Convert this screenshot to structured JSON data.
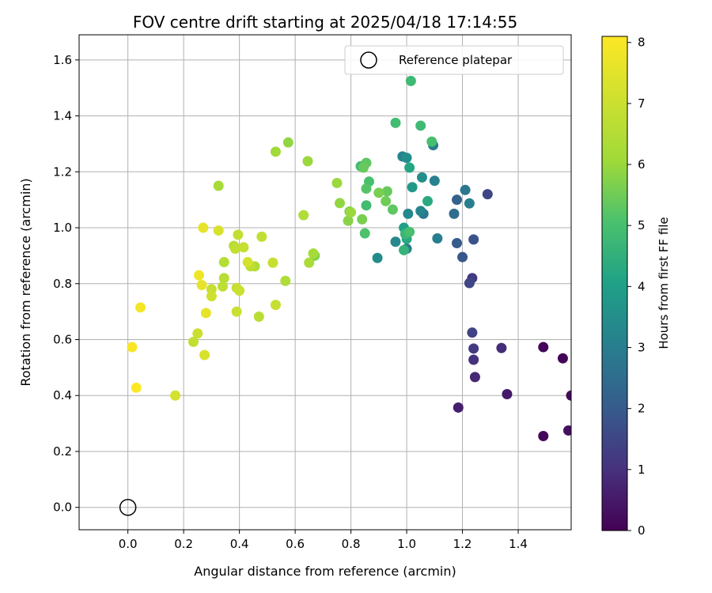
{
  "chart_data": {
    "type": "scatter",
    "title": "FOV centre drift starting at 2025/04/18 17:14:55",
    "xlabel": "Angular distance from reference (arcmin)",
    "ylabel": "Rotation from reference (arcmin)",
    "xlim": [
      -0.175,
      1.59
    ],
    "ylim": [
      -0.08,
      1.69
    ],
    "xticks": [
      "0.0",
      "0.2",
      "0.4",
      "0.6",
      "0.8",
      "1.0",
      "1.2",
      "1.4"
    ],
    "yticks": [
      "0.0",
      "0.2",
      "0.4",
      "0.6",
      "0.8",
      "1.0",
      "1.2",
      "1.4",
      "1.6"
    ],
    "grid": true,
    "legend": {
      "placement": "top-right",
      "label": "Reference platepar"
    },
    "reference_point": {
      "x": 0.0,
      "y": 0.0
    },
    "colorbar": {
      "label": "Hours from first FF file",
      "colormap": "viridis",
      "range": [
        0,
        8.1
      ],
      "ticks": [
        "0",
        "1",
        "2",
        "3",
        "4",
        "5",
        "6",
        "7",
        "8"
      ]
    },
    "points": [
      {
        "x": 1.49,
        "y": 0.573,
        "h": 0.1
      },
      {
        "x": 1.56,
        "y": 0.533,
        "h": 0.1
      },
      {
        "x": 1.49,
        "y": 0.255,
        "h": 0.15
      },
      {
        "x": 1.59,
        "y": 0.4,
        "h": 0.2
      },
      {
        "x": 1.58,
        "y": 0.275,
        "h": 0.3
      },
      {
        "x": 1.36,
        "y": 0.405,
        "h": 0.5
      },
      {
        "x": 1.185,
        "y": 0.357,
        "h": 0.6
      },
      {
        "x": 1.245,
        "y": 0.466,
        "h": 0.8
      },
      {
        "x": 1.34,
        "y": 0.57,
        "h": 0.9
      },
      {
        "x": 1.24,
        "y": 0.528,
        "h": 1.0
      },
      {
        "x": 1.24,
        "y": 0.568,
        "h": 1.2
      },
      {
        "x": 1.235,
        "y": 0.625,
        "h": 1.4
      },
      {
        "x": 1.235,
        "y": 0.82,
        "h": 1.2
      },
      {
        "x": 1.225,
        "y": 0.802,
        "h": 1.5
      },
      {
        "x": 1.29,
        "y": 1.12,
        "h": 1.5
      },
      {
        "x": 1.24,
        "y": 0.958,
        "h": 1.8
      },
      {
        "x": 1.2,
        "y": 0.895,
        "h": 1.9
      },
      {
        "x": 1.18,
        "y": 0.945,
        "h": 2.0
      },
      {
        "x": 1.18,
        "y": 1.1,
        "h": 2.2
      },
      {
        "x": 1.17,
        "y": 1.05,
        "h": 2.5
      },
      {
        "x": 1.21,
        "y": 1.135,
        "h": 2.8
      },
      {
        "x": 1.225,
        "y": 1.087,
        "h": 3.0
      },
      {
        "x": 1.11,
        "y": 0.962,
        "h": 3.0
      },
      {
        "x": 1.1,
        "y": 1.168,
        "h": 3.1
      },
      {
        "x": 1.095,
        "y": 1.295,
        "h": 3.0
      },
      {
        "x": 1.06,
        "y": 1.05,
        "h": 2.8
      },
      {
        "x": 1.05,
        "y": 1.06,
        "h": 3.2
      },
      {
        "x": 1.055,
        "y": 1.18,
        "h": 3.5
      },
      {
        "x": 1.005,
        "y": 1.05,
        "h": 3.3
      },
      {
        "x": 1.0,
        "y": 0.925,
        "h": 3.0
      },
      {
        "x": 0.985,
        "y": 1.255,
        "h": 3.2
      },
      {
        "x": 1.0,
        "y": 1.25,
        "h": 3.5
      },
      {
        "x": 0.96,
        "y": 0.95,
        "h": 3.3
      },
      {
        "x": 0.895,
        "y": 0.892,
        "h": 3.4
      },
      {
        "x": 1.02,
        "y": 1.145,
        "h": 3.8
      },
      {
        "x": 1.01,
        "y": 1.215,
        "h": 4.2
      },
      {
        "x": 0.99,
        "y": 1.0,
        "h": 4.0
      },
      {
        "x": 0.99,
        "y": 0.92,
        "h": 4.6
      },
      {
        "x": 1.0,
        "y": 0.96,
        "h": 4.3
      },
      {
        "x": 1.075,
        "y": 1.095,
        "h": 4.3
      },
      {
        "x": 0.995,
        "y": 0.978,
        "h": 4.7
      },
      {
        "x": 1.01,
        "y": 0.985,
        "h": 5.0
      },
      {
        "x": 1.015,
        "y": 1.525,
        "h": 4.8
      },
      {
        "x": 0.96,
        "y": 1.375,
        "h": 4.9
      },
      {
        "x": 1.05,
        "y": 1.365,
        "h": 4.8
      },
      {
        "x": 1.09,
        "y": 1.308,
        "h": 5.0
      },
      {
        "x": 0.95,
        "y": 1.065,
        "h": 5.3
      },
      {
        "x": 0.93,
        "y": 1.13,
        "h": 5.4
      },
      {
        "x": 0.925,
        "y": 1.095,
        "h": 5.5
      },
      {
        "x": 0.9,
        "y": 1.125,
        "h": 5.6
      },
      {
        "x": 0.865,
        "y": 1.165,
        "h": 5.0
      },
      {
        "x": 0.855,
        "y": 1.08,
        "h": 4.9
      },
      {
        "x": 0.855,
        "y": 1.14,
        "h": 5.2
      },
      {
        "x": 0.85,
        "y": 0.98,
        "h": 5.1
      },
      {
        "x": 0.835,
        "y": 1.22,
        "h": 4.9
      },
      {
        "x": 0.855,
        "y": 1.232,
        "h": 5.3
      },
      {
        "x": 0.845,
        "y": 1.215,
        "h": 5.4
      },
      {
        "x": 0.84,
        "y": 1.03,
        "h": 5.6
      },
      {
        "x": 0.795,
        "y": 1.058,
        "h": 5.7
      },
      {
        "x": 0.79,
        "y": 1.025,
        "h": 5.8
      },
      {
        "x": 0.8,
        "y": 1.055,
        "h": 6.0
      },
      {
        "x": 0.76,
        "y": 1.088,
        "h": 5.9
      },
      {
        "x": 0.75,
        "y": 1.16,
        "h": 6.0
      },
      {
        "x": 0.67,
        "y": 0.9,
        "h": 5.7
      },
      {
        "x": 0.665,
        "y": 0.908,
        "h": 6.2
      },
      {
        "x": 0.65,
        "y": 0.875,
        "h": 6.3
      },
      {
        "x": 0.645,
        "y": 1.238,
        "h": 6.0
      },
      {
        "x": 0.63,
        "y": 1.045,
        "h": 6.4
      },
      {
        "x": 0.575,
        "y": 1.305,
        "h": 5.9
      },
      {
        "x": 0.53,
        "y": 1.272,
        "h": 6.1
      },
      {
        "x": 0.565,
        "y": 0.81,
        "h": 6.4
      },
      {
        "x": 0.325,
        "y": 1.15,
        "h": 6.2
      },
      {
        "x": 0.455,
        "y": 0.862,
        "h": 6.4
      },
      {
        "x": 0.44,
        "y": 0.862,
        "h": 6.7
      },
      {
        "x": 0.47,
        "y": 0.682,
        "h": 6.6
      },
      {
        "x": 0.48,
        "y": 0.968,
        "h": 6.8
      },
      {
        "x": 0.52,
        "y": 0.875,
        "h": 6.9
      },
      {
        "x": 0.53,
        "y": 0.724,
        "h": 6.9
      },
      {
        "x": 0.43,
        "y": 0.877,
        "h": 7.2
      },
      {
        "x": 0.415,
        "y": 0.93,
        "h": 6.9
      },
      {
        "x": 0.395,
        "y": 0.975,
        "h": 6.8
      },
      {
        "x": 0.38,
        "y": 0.935,
        "h": 6.6
      },
      {
        "x": 0.385,
        "y": 0.925,
        "h": 6.8
      },
      {
        "x": 0.345,
        "y": 0.877,
        "h": 6.5
      },
      {
        "x": 0.345,
        "y": 0.82,
        "h": 6.6
      },
      {
        "x": 0.34,
        "y": 0.79,
        "h": 6.7
      },
      {
        "x": 0.39,
        "y": 0.785,
        "h": 6.9
      },
      {
        "x": 0.4,
        "y": 0.775,
        "h": 7.0
      },
      {
        "x": 0.39,
        "y": 0.7,
        "h": 7.0
      },
      {
        "x": 0.3,
        "y": 0.78,
        "h": 6.9
      },
      {
        "x": 0.3,
        "y": 0.755,
        "h": 7.1
      },
      {
        "x": 0.325,
        "y": 0.99,
        "h": 7.3
      },
      {
        "x": 0.27,
        "y": 1.0,
        "h": 7.6
      },
      {
        "x": 0.265,
        "y": 0.795,
        "h": 7.6
      },
      {
        "x": 0.255,
        "y": 0.83,
        "h": 7.8
      },
      {
        "x": 0.28,
        "y": 0.695,
        "h": 7.6
      },
      {
        "x": 0.275,
        "y": 0.545,
        "h": 7.3
      },
      {
        "x": 0.25,
        "y": 0.622,
        "h": 7.0
      },
      {
        "x": 0.235,
        "y": 0.592,
        "h": 6.8
      },
      {
        "x": 0.17,
        "y": 0.4,
        "h": 7.2
      },
      {
        "x": 0.045,
        "y": 0.715,
        "h": 7.9
      },
      {
        "x": 0.015,
        "y": 0.573,
        "h": 8.0
      },
      {
        "x": 0.03,
        "y": 0.428,
        "h": 8.1
      }
    ]
  }
}
